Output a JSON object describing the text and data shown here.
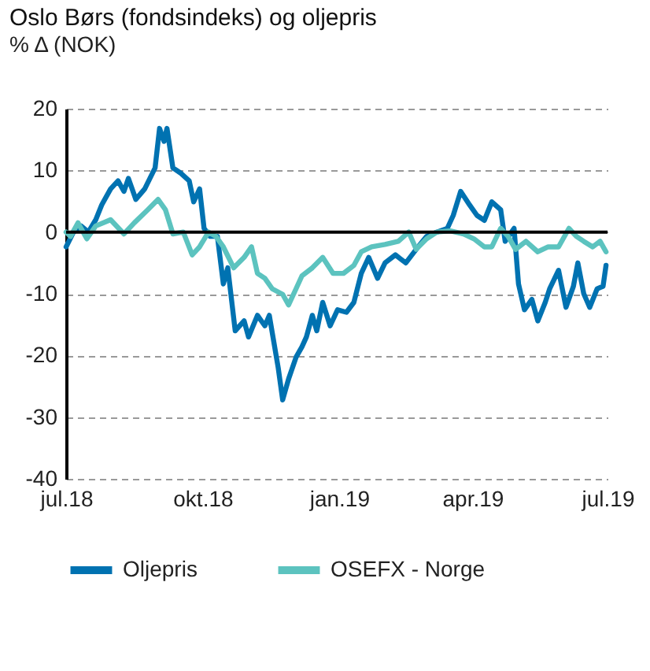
{
  "chart_data": {
    "type": "line",
    "title": "Oslo Børs (fondsindeks) og oljepris",
    "ylabel": "% Δ (NOK)",
    "xlim": [
      "2018-07-01",
      "2019-07-01"
    ],
    "ylim": [
      -40,
      20
    ],
    "yticks": [
      -40,
      -30,
      -20,
      -10,
      0,
      10,
      20
    ],
    "xticks": [
      {
        "value": "2018-07-01",
        "label": "jul.18"
      },
      {
        "value": "2018-10-01",
        "label": "okt.18"
      },
      {
        "value": "2019-01-01",
        "label": "jan.19"
      },
      {
        "value": "2019-04-01",
        "label": "apr.19"
      },
      {
        "value": "2019-07-01",
        "label": "jul.19"
      }
    ],
    "grid": "y",
    "legend": "bottom",
    "line_style": "solid",
    "ref_lines": [
      {
        "axis": "y",
        "value": 0,
        "color": "#000000",
        "line_style": "solid"
      }
    ],
    "series": [
      {
        "name": "Oljepris",
        "color": "#0072b1",
        "x": [
          "2018-07-01",
          "2018-07-06",
          "2018-07-11",
          "2018-07-16",
          "2018-07-21",
          "2018-07-25",
          "2018-07-31",
          "2018-08-05",
          "2018-08-09",
          "2018-08-12",
          "2018-08-17",
          "2018-08-23",
          "2018-08-30",
          "2018-09-02",
          "2018-09-05",
          "2018-09-07",
          "2018-09-11",
          "2018-09-16",
          "2018-09-22",
          "2018-09-25",
          "2018-09-29",
          "2018-10-02",
          "2018-10-06",
          "2018-10-11",
          "2018-10-15",
          "2018-10-18",
          "2018-10-23",
          "2018-10-29",
          "2018-11-01",
          "2018-11-07",
          "2018-11-12",
          "2018-11-15",
          "2018-11-21",
          "2018-11-24",
          "2018-11-28",
          "2018-12-03",
          "2018-12-07",
          "2018-12-10",
          "2018-12-14",
          "2018-12-17",
          "2018-12-21",
          "2018-12-26",
          "2018-12-31",
          "2019-01-06",
          "2019-01-11",
          "2019-01-16",
          "2019-01-21",
          "2019-01-27",
          "2019-02-01",
          "2019-02-08",
          "2019-02-15",
          "2019-02-22",
          "2019-03-01",
          "2019-03-08",
          "2019-03-15",
          "2019-03-19",
          "2019-03-24",
          "2019-03-30",
          "2019-04-04",
          "2019-04-09",
          "2019-04-14",
          "2019-04-20",
          "2019-04-23",
          "2019-04-29",
          "2019-05-02",
          "2019-05-06",
          "2019-05-11",
          "2019-05-15",
          "2019-05-20",
          "2019-05-23",
          "2019-05-29",
          "2019-06-03",
          "2019-06-08",
          "2019-06-11",
          "2019-06-15",
          "2019-06-19",
          "2019-06-24",
          "2019-06-28",
          "2019-06-30"
        ],
        "values": [
          -2.4,
          0,
          1,
          0,
          2,
          4.4,
          7,
          8.3,
          6.6,
          8.7,
          5.3,
          7,
          10.4,
          16.8,
          14.7,
          16.8,
          10.4,
          9.6,
          8.3,
          4.9,
          7,
          0.6,
          -0.7,
          -0.7,
          -8.4,
          -5.8,
          -16,
          -14.4,
          -17,
          -13.5,
          -15.2,
          -13.5,
          -22,
          -27.2,
          -23.8,
          -20.3,
          -18.6,
          -17,
          -13.5,
          -16,
          -11.4,
          -15.2,
          -12.6,
          -13,
          -11.4,
          -6.7,
          -4.1,
          -7.5,
          -5,
          -3.7,
          -5,
          -2.8,
          -0.7,
          0,
          0.6,
          2.7,
          6.6,
          4.4,
          2.7,
          1.9,
          4.9,
          3.6,
          -1.5,
          0.6,
          -8.4,
          -12.6,
          -10.9,
          -14.4,
          -11.4,
          -9.2,
          -6.2,
          -12.2,
          -8.8,
          -5,
          -10,
          -12.2,
          -9.2,
          -8.8,
          -5.4
        ]
      },
      {
        "name": "OSEFX - Norge",
        "color": "#5cc3bf",
        "x": [
          "2018-07-01",
          "2018-07-04",
          "2018-07-09",
          "2018-07-15",
          "2018-07-21",
          "2018-07-31",
          "2018-08-09",
          "2018-08-16",
          "2018-08-25",
          "2018-09-01",
          "2018-09-06",
          "2018-09-11",
          "2018-09-18",
          "2018-09-24",
          "2018-09-29",
          "2018-10-05",
          "2018-10-10",
          "2018-10-15",
          "2018-10-22",
          "2018-10-29",
          "2018-11-03",
          "2018-11-07",
          "2018-11-12",
          "2018-11-17",
          "2018-11-24",
          "2018-11-28",
          "2018-12-03",
          "2018-12-07",
          "2018-12-14",
          "2018-12-21",
          "2018-12-28",
          "2019-01-04",
          "2019-01-11",
          "2019-01-16",
          "2019-01-23",
          "2019-02-01",
          "2019-02-10",
          "2019-02-17",
          "2019-02-22",
          "2019-03-01",
          "2019-03-08",
          "2019-03-17",
          "2019-03-26",
          "2019-04-02",
          "2019-04-09",
          "2019-04-14",
          "2019-04-20",
          "2019-04-25",
          "2019-04-30",
          "2019-05-07",
          "2019-05-15",
          "2019-05-22",
          "2019-05-29",
          "2019-06-05",
          "2019-06-10",
          "2019-06-15",
          "2019-06-21",
          "2019-06-26",
          "2019-06-30"
        ],
        "values": [
          0,
          -0.7,
          1.5,
          -1.1,
          1,
          2,
          -0.3,
          1.5,
          3.6,
          5.3,
          3.6,
          -0.3,
          0,
          -3.7,
          -2.4,
          0,
          -0.7,
          -2.4,
          -5.8,
          -4.1,
          -2.4,
          -6.7,
          -7.5,
          -9.2,
          -10.1,
          -11.8,
          -9.2,
          -7.1,
          -5.8,
          -4.1,
          -6.7,
          -6.7,
          -5.4,
          -3.2,
          -2.4,
          -2,
          -1.5,
          0,
          -2.8,
          -1.1,
          0,
          0.2,
          -0.3,
          -1.1,
          -2.4,
          -2.4,
          0.6,
          -0.7,
          -2.8,
          -1.5,
          -3.2,
          -2.4,
          -2.4,
          0.6,
          -0.7,
          -1.5,
          -2.4,
          -1.5,
          -3.2
        ]
      }
    ]
  }
}
